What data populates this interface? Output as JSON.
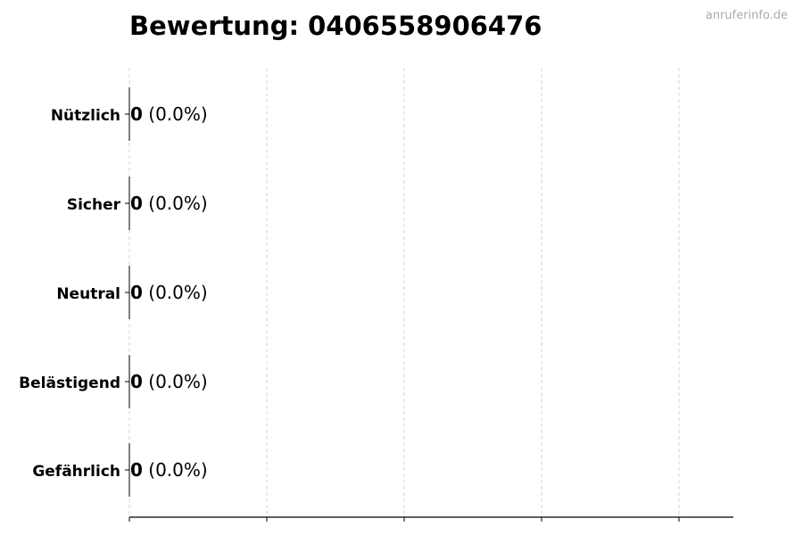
{
  "chart_data": {
    "type": "bar",
    "orientation": "horizontal",
    "title": "Bewertung: 0406558906476",
    "categories": [
      "Nützlich",
      "Sicher",
      "Neutral",
      "Belästigend",
      "Gefährlich"
    ],
    "values": [
      0,
      0,
      0,
      0,
      0
    ],
    "data_labels": [
      {
        "count": "0",
        "percent": "(0.0%)"
      },
      {
        "count": "0",
        "percent": "(0.0%)"
      },
      {
        "count": "0",
        "percent": "(0.0%)"
      },
      {
        "count": "0",
        "percent": "(0.0%)"
      },
      {
        "count": "0",
        "percent": "(0.0%)"
      }
    ],
    "xlabel": "",
    "ylabel": "",
    "x_ticks_count": 5,
    "x_tick_labels_shown": false,
    "grid": "x-dashed",
    "bar_color": "#000000",
    "grid_color": "#cccccc"
  },
  "watermark": "anruferinfo.de"
}
